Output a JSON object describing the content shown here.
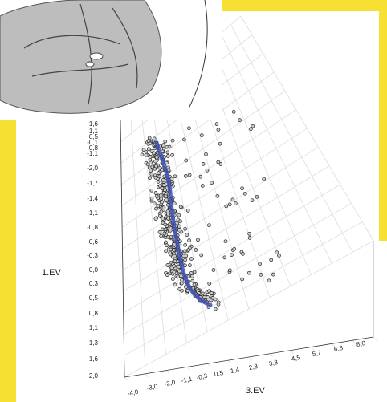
{
  "axis_titles": {
    "vertical": "1.EV",
    "horizontal": "3.EV"
  },
  "vertical_ticks": [
    "1,6",
    "1,1",
    "0,5",
    "-0,1",
    "-0,8",
    "-1,1",
    "-2,0",
    "-1,7",
    "-1,4",
    "-1,1",
    "-0,8",
    "-0,6",
    "-0,3",
    "0,0",
    "0,3",
    "0,5",
    "0,8",
    "1,1",
    "1,3",
    "1,6",
    "2,0"
  ],
  "horizontal_ticks": [
    "-4,0",
    "-3,0",
    "-2,0",
    "-1,1",
    "-0,3",
    "0,5",
    "1,4",
    "2,3",
    "3,3",
    "4,5",
    "5,7",
    "6,8",
    "8,0"
  ]
}
